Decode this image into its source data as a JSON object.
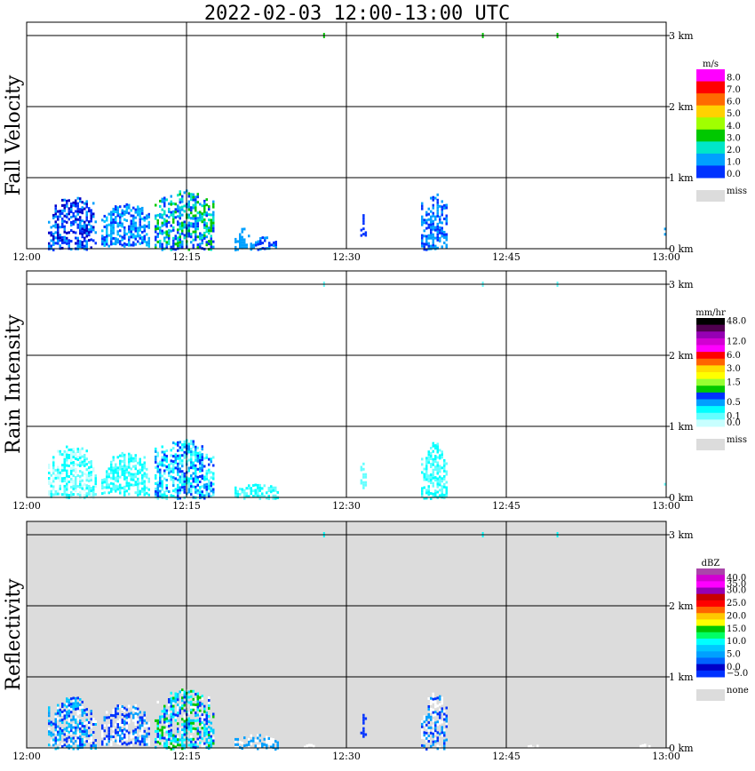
{
  "title": "2022-02-03  12:00-13:00 UTC",
  "chart_data": [
    {
      "type": "heatmap",
      "ylabel": "Fall Velocity",
      "unit": "m/s",
      "background": "#ffffff",
      "x_ticks": [
        "12:00",
        "12:15",
        "12:30",
        "12:45",
        "13:00"
      ],
      "y_ticks": [
        "0 km",
        "1 km",
        "2 km",
        "3 km"
      ],
      "xlim_minutes": [
        0,
        60
      ],
      "ylim_km": [
        0,
        3.0
      ],
      "grid": true,
      "colorbar": [
        {
          "label": "8.0",
          "color": "#ff00ff"
        },
        {
          "label": "7.0",
          "color": "#ff0000"
        },
        {
          "label": "6.0",
          "color": "#ff6a00"
        },
        {
          "label": "5.0",
          "color": "#ffd200"
        },
        {
          "label": "4.0",
          "color": "#a0ff00"
        },
        {
          "label": "3.0",
          "color": "#00c800"
        },
        {
          "label": "2.0",
          "color": "#00e6c8"
        },
        {
          "label": "1.0",
          "color": "#00a0ff"
        },
        {
          "label": "0.0",
          "color": "#0032ff"
        }
      ],
      "colorbar_extra": [
        {
          "label": "miss",
          "color": "#dcdcdc"
        }
      ],
      "regions": [
        {
          "t0": 2.0,
          "t1": 6.5,
          "z0": 0.0,
          "z1": 0.75,
          "palette": [
            "#0032ff",
            "#00a0ff",
            "#0000c8"
          ]
        },
        {
          "t0": 7.0,
          "t1": 11.5,
          "z0": 0.05,
          "z1": 0.65,
          "palette": [
            "#00a0ff",
            "#0032ff",
            "#00c8ff"
          ]
        },
        {
          "t0": 12.0,
          "t1": 17.5,
          "z0": 0.0,
          "z1": 0.85,
          "palette": [
            "#00a0ff",
            "#0032ff",
            "#00c800",
            "#00e6c8"
          ]
        },
        {
          "t0": 19.5,
          "t1": 21.0,
          "z0": 0.0,
          "z1": 0.3,
          "palette": [
            "#00a0ff"
          ]
        },
        {
          "t0": 21.0,
          "t1": 23.5,
          "z0": 0.0,
          "z1": 0.18,
          "palette": [
            "#00a0ff",
            "#0032ff"
          ]
        },
        {
          "t0": 31.3,
          "t1": 31.8,
          "z0": 0.15,
          "z1": 0.5,
          "palette": [
            "#0032ff"
          ]
        },
        {
          "t0": 37.0,
          "t1": 39.5,
          "z0": 0.0,
          "z1": 0.8,
          "palette": [
            "#0032ff",
            "#00a0ff"
          ]
        },
        {
          "t0": 59.8,
          "t1": 60.0,
          "z0": 0.2,
          "z1": 0.35,
          "palette": [
            "#00a0ff"
          ]
        }
      ],
      "specks": [
        {
          "t": 27.9,
          "z": 3.0,
          "color": "#00c800"
        },
        {
          "t": 42.8,
          "z": 3.0,
          "color": "#00c800"
        },
        {
          "t": 49.8,
          "z": 3.0,
          "color": "#00c800"
        }
      ]
    },
    {
      "type": "heatmap",
      "ylabel": "Rain Intensity",
      "unit": "mm/hr",
      "background": "#ffffff",
      "x_ticks": [
        "12:00",
        "12:15",
        "12:30",
        "12:45",
        "13:00"
      ],
      "y_ticks": [
        "0 km",
        "1 km",
        "2 km",
        "3 km"
      ],
      "xlim_minutes": [
        0,
        60
      ],
      "ylim_km": [
        0,
        3.0
      ],
      "grid": true,
      "colorbar": [
        {
          "label": "48.0",
          "color": "#000000"
        },
        {
          "label": "",
          "color": "#500050"
        },
        {
          "label": "",
          "color": "#9600b4"
        },
        {
          "label": "12.0",
          "color": "#d200d2"
        },
        {
          "label": "",
          "color": "#ff00ff"
        },
        {
          "label": "6.0",
          "color": "#ff0000"
        },
        {
          "label": "",
          "color": "#ff6400"
        },
        {
          "label": "3.0",
          "color": "#ffdc00"
        },
        {
          "label": "",
          "color": "#ffff00"
        },
        {
          "label": "1.5",
          "color": "#96ff32"
        },
        {
          "label": "",
          "color": "#00c800"
        },
        {
          "label": "",
          "color": "#0032ff"
        },
        {
          "label": "0.5",
          "color": "#00a0ff"
        },
        {
          "label": "",
          "color": "#00ffff"
        },
        {
          "label": "0.1",
          "color": "#64ffff"
        },
        {
          "label": "0.0",
          "color": "#c8ffff"
        }
      ],
      "colorbar_extra": [
        {
          "label": "miss",
          "color": "#dcdcdc"
        }
      ],
      "regions": [
        {
          "t0": 2.0,
          "t1": 6.5,
          "z0": 0.0,
          "z1": 0.75,
          "palette": [
            "#64ffff",
            "#00ffff",
            "#c8ffff"
          ]
        },
        {
          "t0": 7.0,
          "t1": 11.5,
          "z0": 0.05,
          "z1": 0.65,
          "palette": [
            "#64ffff",
            "#00ffff"
          ]
        },
        {
          "t0": 12.0,
          "t1": 17.5,
          "z0": 0.0,
          "z1": 0.85,
          "palette": [
            "#00ffff",
            "#00a0ff",
            "#64ffff",
            "#0032ff"
          ]
        },
        {
          "t0": 19.5,
          "t1": 23.5,
          "z0": 0.0,
          "z1": 0.2,
          "palette": [
            "#64ffff",
            "#00ffff"
          ]
        },
        {
          "t0": 31.3,
          "t1": 31.8,
          "z0": 0.15,
          "z1": 0.5,
          "palette": [
            "#64ffff"
          ]
        },
        {
          "t0": 37.0,
          "t1": 39.5,
          "z0": 0.0,
          "z1": 0.8,
          "palette": [
            "#64ffff",
            "#00ffff"
          ]
        },
        {
          "t0": 59.8,
          "t1": 60.0,
          "z0": 0.2,
          "z1": 0.35,
          "palette": [
            "#64ffff"
          ]
        }
      ],
      "specks": [
        {
          "t": 27.9,
          "z": 3.0,
          "color": "#64ffff"
        },
        {
          "t": 42.8,
          "z": 3.0,
          "color": "#64ffff"
        },
        {
          "t": 49.8,
          "z": 3.0,
          "color": "#64ffff"
        }
      ]
    },
    {
      "type": "heatmap",
      "ylabel": "Reflectivity",
      "unit": "dBZ",
      "background": "#dcdcdc",
      "x_ticks": [
        "12:00",
        "12:15",
        "12:30",
        "12:45",
        "13:00"
      ],
      "y_ticks": [
        "0 km",
        "1 km",
        "2 km",
        "3 km"
      ],
      "xlim_minutes": [
        0,
        60
      ],
      "ylim_km": [
        0,
        3.0
      ],
      "grid": true,
      "colorbar": [
        {
          "label": "",
          "color": "#aa46aa"
        },
        {
          "label": "40.0",
          "color": "#d200d2"
        },
        {
          "label": "35.0",
          "color": "#ff00ff"
        },
        {
          "label": "30.0",
          "color": "#9600b4"
        },
        {
          "label": "",
          "color": "#c80000"
        },
        {
          "label": "25.0",
          "color": "#ff0000"
        },
        {
          "label": "",
          "color": "#ff6400"
        },
        {
          "label": "20.0",
          "color": "#ffc800"
        },
        {
          "label": "",
          "color": "#ffff00"
        },
        {
          "label": "15.0",
          "color": "#00c800"
        },
        {
          "label": "",
          "color": "#00ff64"
        },
        {
          "label": "10.0",
          "color": "#00ffff"
        },
        {
          "label": "",
          "color": "#00c8ff"
        },
        {
          "label": "5.0",
          "color": "#00a0ff"
        },
        {
          "label": "",
          "color": "#0064ff"
        },
        {
          "label": "0.0",
          "color": "#0000c8"
        },
        {
          "label": "−5.0",
          "color": "#0032ff"
        }
      ],
      "colorbar_extra": [
        {
          "label": "none",
          "color": "#dcdcdc"
        }
      ],
      "regions": [
        {
          "t0": 2.0,
          "t1": 6.5,
          "z0": 0.0,
          "z1": 0.75,
          "palette": [
            "#00a0ff",
            "#0032ff",
            "#ffffff",
            "#00c8ff"
          ]
        },
        {
          "t0": 7.0,
          "t1": 11.5,
          "z0": 0.05,
          "z1": 0.65,
          "palette": [
            "#0032ff",
            "#00a0ff",
            "#ffffff"
          ]
        },
        {
          "t0": 12.0,
          "t1": 17.5,
          "z0": 0.0,
          "z1": 0.85,
          "palette": [
            "#00c8ff",
            "#00ffff",
            "#0032ff",
            "#00c800",
            "#ffffff"
          ]
        },
        {
          "t0": 19.5,
          "t1": 23.5,
          "z0": 0.0,
          "z1": 0.2,
          "palette": [
            "#00a0ff",
            "#ffffff"
          ]
        },
        {
          "t0": 31.3,
          "t1": 31.8,
          "z0": 0.15,
          "z1": 0.5,
          "palette": [
            "#0032ff"
          ]
        },
        {
          "t0": 37.0,
          "t1": 39.5,
          "z0": 0.0,
          "z1": 0.8,
          "palette": [
            "#00a0ff",
            "#0032ff",
            "#ffffff"
          ]
        },
        {
          "t0": 26.0,
          "t1": 27.0,
          "z0": 0.0,
          "z1": 0.06,
          "palette": [
            "#ffffff"
          ]
        },
        {
          "t0": 47.0,
          "t1": 48.0,
          "z0": 0.0,
          "z1": 0.06,
          "palette": [
            "#ffffff"
          ]
        },
        {
          "t0": 57.5,
          "t1": 58.5,
          "z0": 0.0,
          "z1": 0.06,
          "palette": [
            "#ffffff"
          ]
        }
      ],
      "specks": [
        {
          "t": 27.9,
          "z": 3.0,
          "color": "#00ffff"
        },
        {
          "t": 42.8,
          "z": 3.0,
          "color": "#00ffff"
        },
        {
          "t": 49.8,
          "z": 3.0,
          "color": "#00ffff"
        }
      ]
    }
  ]
}
